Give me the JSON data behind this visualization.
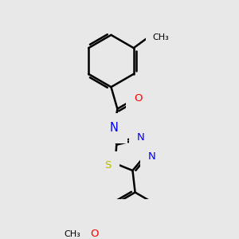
{
  "bg_color": "#e8e8e8",
  "bond_color": "#000000",
  "bond_width": 1.8,
  "dbo": 0.055,
  "atom_colors": {
    "N": "#0000ff",
    "O": "#ff0000",
    "S": "#bbbb00",
    "C": "#000000"
  },
  "font_size": 9.5,
  "small_font": 8.0
}
